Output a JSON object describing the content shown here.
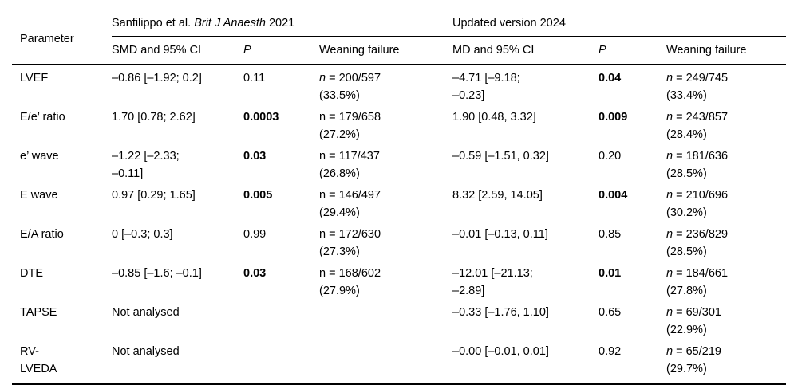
{
  "table": {
    "header": {
      "parameter": "Parameter",
      "group_2021": {
        "pre": "Sanfilippo et al. ",
        "journal": "Brit J Anaesth",
        "post": " 2021"
      },
      "group_2024": "Updated version 2024",
      "smd_ci": "SMD and 95% CI",
      "p_2021": "P",
      "weaning_2021": "Weaning failure",
      "md_ci": "MD and 95% CI",
      "p_2024": "P",
      "weaning_2024": "Weaning failure"
    },
    "rows": [
      {
        "parameter": "LVEF",
        "y2021": {
          "ci": "–0.86 [–1.92; 0.2]",
          "p": "0.11",
          "n": "n",
          "n_rest": " = 200/597",
          "pct": "(33.5%)"
        },
        "y2024": {
          "ci": "–4.71 [–9.18;\n–0.23]",
          "p": "0.04",
          "n": "n",
          "n_rest": " = 249/745",
          "pct": "(33.4%)"
        }
      },
      {
        "parameter": "E/e’ ratio",
        "y2021": {
          "ci": "1.70 [0.78; 2.62]",
          "p": "0.0003",
          "n": "n",
          "n_rest": " = 179/658",
          "pct": "(27.2%)"
        },
        "y2024": {
          "ci": "1.90 [0.48, 3.32]",
          "p": "0.009",
          "n": "n",
          "n_rest": " = 243/857",
          "pct": "(28.4%)"
        }
      },
      {
        "parameter": "e’ wave",
        "y2021": {
          "ci": "–1.22 [–2.33;\n–0.11]",
          "p": "0.03",
          "n": "n",
          "n_rest": " = 117/437",
          "pct": "(26.8%)"
        },
        "y2024": {
          "ci": "–0.59 [–1.51, 0.32]",
          "p": "0.20",
          "n": "n",
          "n_rest": " = 181/636",
          "pct": "(28.5%)"
        }
      },
      {
        "parameter": "E wave",
        "y2021": {
          "ci": "0.97 [0.29; 1.65]",
          "p": "0.005",
          "n": "n",
          "n_rest": " = 146/497",
          "pct": "(29.4%)"
        },
        "y2024": {
          "ci": "8.32 [2.59, 14.05]",
          "p": "0.004",
          "n": "n",
          "n_rest": " = 210/696",
          "pct": "(30.2%)"
        }
      },
      {
        "parameter": "E/A ratio",
        "y2021": {
          "ci": "0 [–0.3; 0.3]",
          "p": "0.99",
          "n": "n",
          "n_rest": " = 172/630",
          "pct": "(27.3%)"
        },
        "y2024": {
          "ci": "–0.01 [–0.13, 0.11]",
          "p": "0.85",
          "n": "n",
          "n_rest": " = 236/829",
          "pct": "(28.5%)"
        }
      },
      {
        "parameter": "DTE",
        "y2021": {
          "ci": "–0.85 [–1.6; –0.1]",
          "p": "0.03",
          "n": "n",
          "n_rest": " = 168/602",
          "pct": "(27.9%)"
        },
        "y2024": {
          "ci": "–12.01 [–21.13;\n–2.89]",
          "p": "0.01",
          "n": "n",
          "n_rest": " = 184/661",
          "pct": "(27.8%)"
        }
      },
      {
        "parameter": "TAPSE",
        "y2021": {
          "ci": "Not analysed"
        },
        "y2024": {
          "ci": "–0.33 [–1.76, 1.10]",
          "p": "0.65",
          "n": "n",
          "n_rest": " = 69/301",
          "pct": "(22.9%)"
        }
      },
      {
        "parameter": "RV-\nLVEDA",
        "y2021": {
          "ci": "Not analysed"
        },
        "y2024": {
          "ci": "–0.00 [–0.01, 0.01]",
          "p": "0.92",
          "n": "n",
          "n_rest": " = 65/219",
          "pct": "(29.7%)"
        }
      }
    ]
  }
}
